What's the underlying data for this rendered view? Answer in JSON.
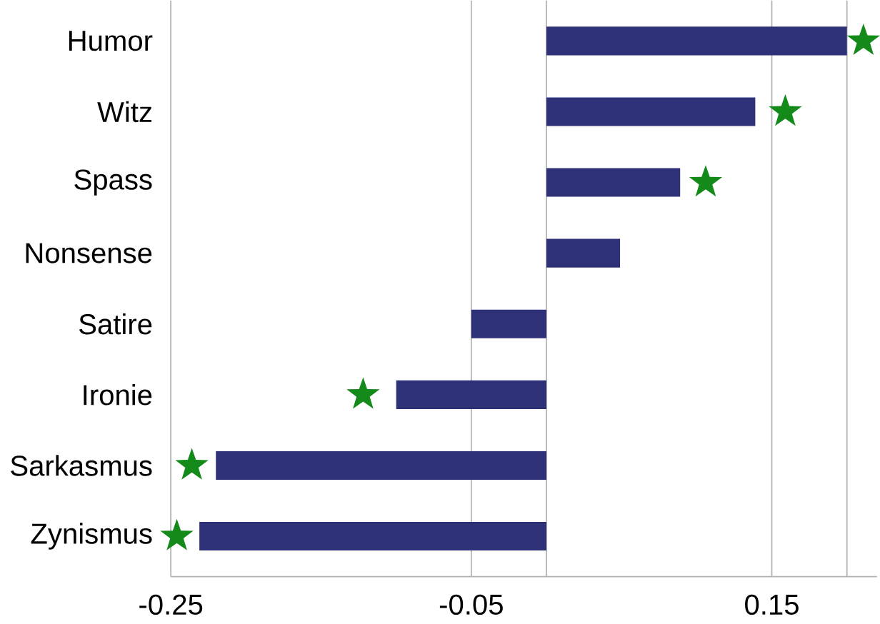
{
  "chart_data": {
    "type": "bar",
    "orientation": "horizontal",
    "categories": [
      "Humor",
      "Witz",
      "Spass",
      "Nonsense",
      "Satire",
      "Ironie",
      "Sarkasmus",
      "Zynismus"
    ],
    "series": [
      {
        "color": "#2e3178",
        "values": [
          0.2,
          0.139,
          0.089,
          0.049,
          -0.05,
          -0.1,
          -0.22,
          -0.231
        ]
      },
      {
        "type": "scatter",
        "color": "#138a1a",
        "marker": "star",
        "values": [
          0.211,
          0.159,
          0.106,
          null,
          null,
          -0.122,
          -0.236,
          -0.246
        ]
      }
    ],
    "xlim": [
      -0.25,
      0.22
    ],
    "xticks": [
      -0.25,
      -0.05,
      0.15,
      {
        "value": 0.2,
        "label": null
      }
    ],
    "grid": "x",
    "ref_lines": [
      {
        "axis": "x",
        "value": 0
      }
    ]
  }
}
